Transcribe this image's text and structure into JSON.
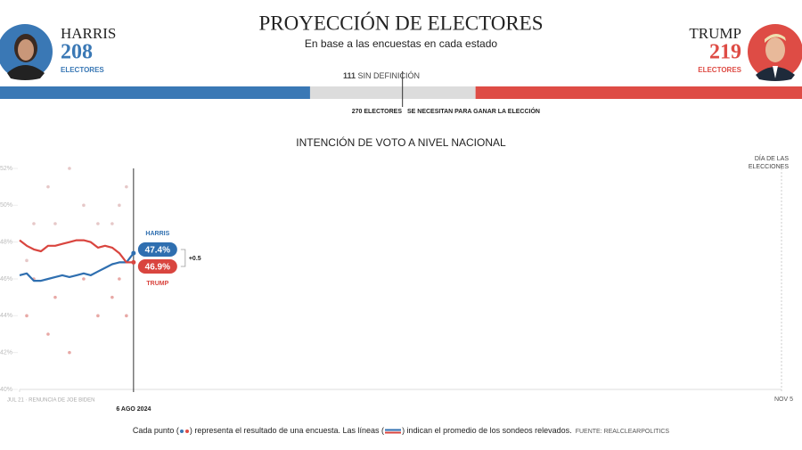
{
  "header": {
    "title": "PROYECCIÓN DE ELECTORES",
    "subtitle": "En base a las encuestas en cada estado",
    "harris": {
      "name": "HARRIS",
      "votes": 208,
      "label": "ELECTORES",
      "color": "#3a78b5"
    },
    "trump": {
      "name": "TRUMP",
      "votes": 219,
      "label": "ELECTORES",
      "color": "#de4c45"
    },
    "undecided": {
      "votes": 111,
      "label": "SIN DEFINICIÓN",
      "color": "#dcdcdc"
    },
    "threshold": {
      "votes": 270,
      "label": "ELECTORES",
      "note": "SE NECESITAN PARA GANAR LA ELECCIÓN"
    }
  },
  "chart_data": {
    "type": "line",
    "title": "INTENCIÓN DE VOTO A NIVEL NACIONAL",
    "x": [
      "2024-07-21",
      "2024-07-22",
      "2024-07-23",
      "2024-07-24",
      "2024-07-25",
      "2024-07-26",
      "2024-07-27",
      "2024-07-28",
      "2024-07-29",
      "2024-07-30",
      "2024-07-31",
      "2024-08-01",
      "2024-08-02",
      "2024-08-03",
      "2024-08-04",
      "2024-08-05",
      "2024-08-06"
    ],
    "series": [
      {
        "name": "HARRIS",
        "color": "#2f6fb0",
        "end_label": "47.4%",
        "values": [
          46.2,
          46.3,
          45.9,
          45.9,
          46.0,
          46.1,
          46.2,
          46.1,
          46.2,
          46.3,
          46.2,
          46.4,
          46.6,
          46.8,
          46.9,
          46.9,
          47.4
        ],
        "polls": {
          "x": [
            "2024-07-22",
            "2024-07-23",
            "2024-07-25",
            "2024-07-26",
            "2024-07-28",
            "2024-07-30",
            "2024-08-01",
            "2024-08-03",
            "2024-08-04",
            "2024-08-05"
          ],
          "values": [
            44,
            46,
            43,
            45,
            42,
            46,
            44,
            45,
            46,
            44
          ],
          "color": "#e8a9a6"
        }
      },
      {
        "name": "TRUMP",
        "color": "#d9453f",
        "end_label": "46.9%",
        "values": [
          48.1,
          47.8,
          47.6,
          47.5,
          47.8,
          47.8,
          47.9,
          48.0,
          48.1,
          48.1,
          48.0,
          47.7,
          47.8,
          47.7,
          47.4,
          46.9,
          46.9
        ],
        "polls": {
          "x": [
            "2024-07-22",
            "2024-07-23",
            "2024-07-25",
            "2024-07-26",
            "2024-07-28",
            "2024-07-30",
            "2024-08-01",
            "2024-08-03",
            "2024-08-04",
            "2024-08-05"
          ],
          "values": [
            47,
            49,
            51,
            49,
            52,
            50,
            49,
            49,
            50,
            51
          ],
          "color": "#e6c8c8"
        }
      }
    ],
    "lead_label": "+0.5",
    "xlim": [
      "2024-07-21",
      "2024-11-05"
    ],
    "xticks": [
      {
        "value": "2024-07-21",
        "label": "JUL 21 · RENUNCIA DE JOE BIDEN"
      },
      {
        "value": "2024-08-06",
        "label": "6 AGO 2024"
      },
      {
        "value": "2024-11-05",
        "label": "NOV 5"
      }
    ],
    "annotation": "DÍA DE LAS ELECCIONES",
    "ylim": [
      40,
      52
    ],
    "yticks": [
      {
        "value": 40,
        "label": "40%"
      },
      {
        "value": 42,
        "label": "42%"
      },
      {
        "value": 44,
        "label": "44%"
      },
      {
        "value": 46,
        "label": "46%"
      },
      {
        "value": 48,
        "label": "48%"
      },
      {
        "value": 50,
        "label": "50%"
      },
      {
        "value": 52,
        "label": "52%"
      }
    ],
    "grid": false
  },
  "footer": {
    "text1": "Cada punto (",
    "text2": ") representa el resultado de una encuesta. Las líneas (",
    "text3": ") indican el promedio de los sondeos relevados.",
    "source": "FUENTE: REALCLEARPOLITICS"
  }
}
